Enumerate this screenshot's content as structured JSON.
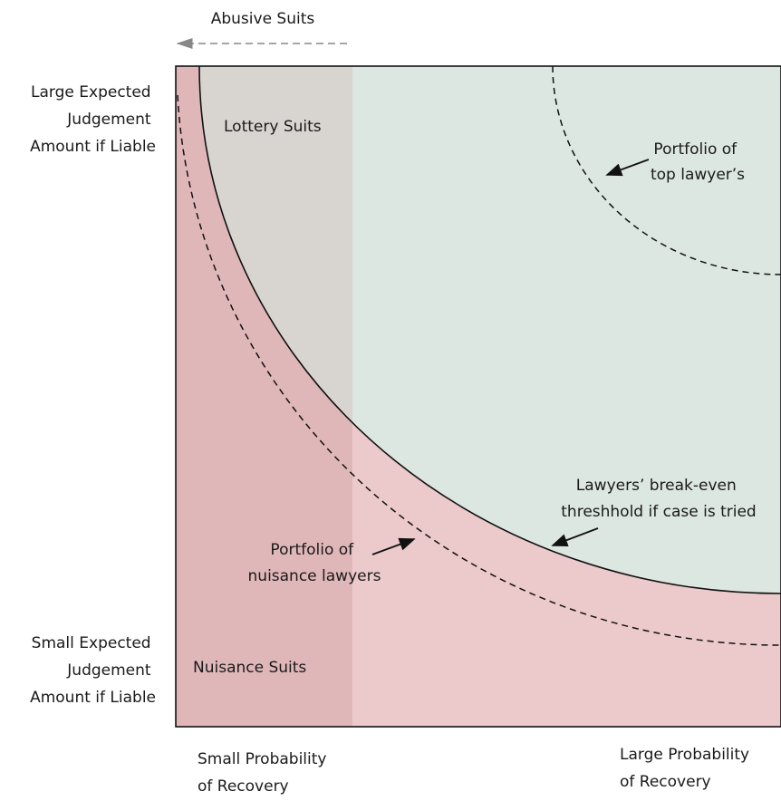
{
  "top_arrow_label": "Abusive Suits",
  "y_axis": {
    "top": [
      "Large Expected",
      "Judgement",
      "Amount if Liable"
    ],
    "bottom": [
      "Small Expected",
      "Judgement",
      "Amount if Liable"
    ]
  },
  "x_axis": {
    "left": [
      "Small Probability",
      "of Recovery"
    ],
    "right": [
      "Large Probability",
      "of Recovery"
    ]
  },
  "regions": {
    "lottery": "Lottery Suits",
    "nuisance": "Nuisance Suits"
  },
  "annotations": {
    "top_lawyer": [
      "Portfolio of",
      "top lawyer’s"
    ],
    "break_even": [
      "Lawyers’ break-even",
      "threshhold if case is tried"
    ],
    "nuisance_lawyers": [
      "Portfolio of",
      "nuisance lawyers"
    ]
  }
}
